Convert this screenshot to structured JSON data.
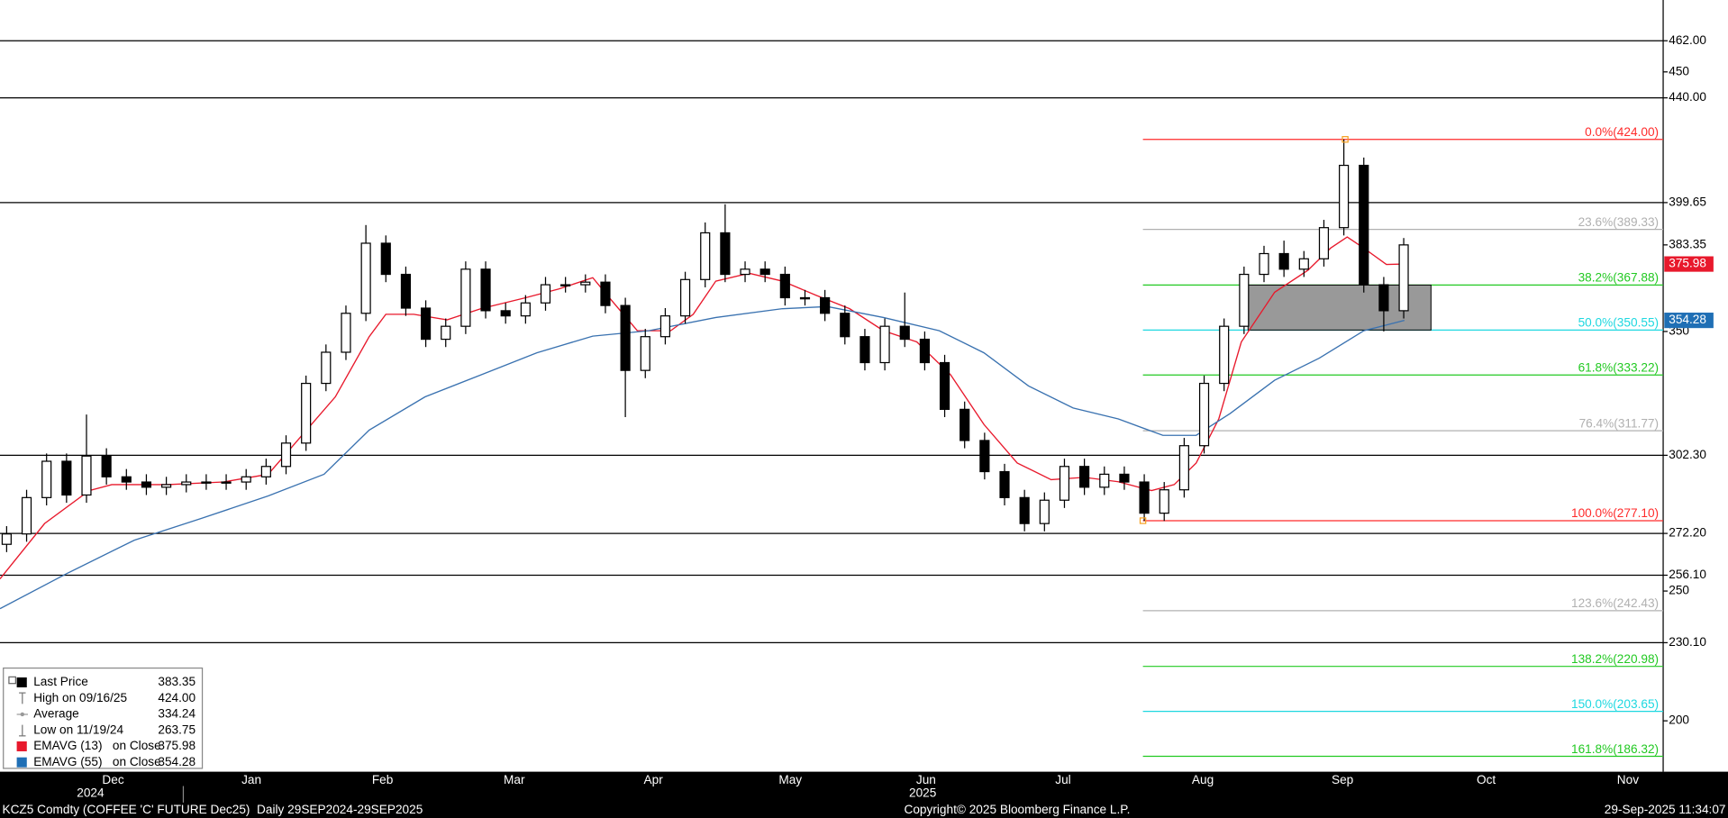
{
  "chart_data": {
    "type": "candlestick",
    "xlim": [
      0,
      250
    ],
    "ylim": [
      180.4,
      477.7
    ],
    "xticks": [
      {
        "value": 17,
        "label": "Dec"
      },
      {
        "value": 37.8,
        "label": "Jan"
      },
      {
        "value": 57.5,
        "label": "Feb"
      },
      {
        "value": 77.3,
        "label": "Mar"
      },
      {
        "value": 98.2,
        "label": "Apr"
      },
      {
        "value": 118.8,
        "label": "May"
      },
      {
        "value": 139.2,
        "label": "Jun"
      },
      {
        "value": 159.8,
        "label": "Jul"
      },
      {
        "value": 180.8,
        "label": "Aug"
      },
      {
        "value": 201.8,
        "label": "Sep"
      },
      {
        "value": 223.4,
        "label": "Oct"
      },
      {
        "value": 244.7,
        "label": "Nov"
      }
    ],
    "year_labels": [
      {
        "value": 13.6,
        "label": "2024"
      },
      {
        "value": 138.7,
        "label": "2025"
      }
    ],
    "yticks": [
      {
        "value": 462,
        "label": "462.00"
      },
      450,
      {
        "value": 440,
        "label": "440.00"
      },
      399.65,
      383.35,
      350,
      {
        "value": 302.3,
        "label": "302.30"
      },
      {
        "value": 272.2,
        "label": "272.20"
      },
      {
        "value": 256.1,
        "label": "256.10"
      },
      250,
      {
        "value": 230.1,
        "label": "230.10"
      },
      200
    ],
    "hlines": [
      462,
      440,
      399.65,
      302.3,
      272.2,
      256.1,
      230.1
    ],
    "x": [
      1,
      4,
      7,
      10,
      13,
      16,
      19,
      22,
      25,
      28,
      31,
      34,
      37,
      40,
      43,
      46,
      49,
      52,
      55,
      58,
      61,
      64,
      67,
      70,
      73,
      76,
      79,
      82,
      85,
      88,
      91,
      94,
      97,
      100,
      103,
      106,
      109,
      112,
      115,
      118,
      121,
      124,
      127,
      130,
      133,
      136,
      139,
      142,
      145,
      148,
      151,
      154,
      157,
      160,
      163,
      166,
      169,
      172,
      175,
      178,
      181,
      184,
      187,
      190,
      193,
      196,
      199,
      202,
      205,
      208,
      211
    ],
    "open": [
      268,
      272,
      286,
      300,
      287,
      302,
      294,
      292,
      290,
      291,
      292,
      292,
      292,
      294,
      298,
      307,
      330,
      342,
      357,
      384,
      372,
      359,
      347,
      352,
      374,
      358,
      356,
      361,
      368,
      368,
      369,
      360,
      335,
      348,
      356,
      370,
      388,
      372,
      374,
      372,
      363,
      363,
      357,
      348,
      338,
      352,
      347,
      338,
      320,
      308,
      296,
      286,
      276,
      285,
      298,
      290,
      295,
      292,
      280,
      289,
      306,
      330,
      352,
      372,
      380,
      374,
      378,
      390,
      414,
      368,
      358
    ],
    "high": [
      275,
      289,
      303,
      303,
      318,
      305,
      297,
      295,
      294,
      295,
      295,
      295,
      297,
      301,
      310,
      333,
      345,
      360,
      391,
      387,
      375,
      362,
      355,
      377,
      377,
      361,
      364,
      371,
      371,
      372,
      372,
      363,
      351,
      359,
      373,
      392,
      399,
      377,
      377,
      375,
      366,
      366,
      360,
      351,
      355,
      365,
      350,
      341,
      323,
      311,
      299,
      289,
      288,
      301,
      301,
      298,
      298,
      295,
      292,
      309,
      333,
      355,
      375,
      383,
      385,
      381,
      393,
      424,
      417,
      371,
      386
    ],
    "low": [
      265,
      269,
      283,
      284,
      284,
      291,
      289,
      287,
      287,
      288,
      289,
      289,
      289,
      291,
      295,
      304,
      327,
      339,
      354,
      369,
      356,
      344,
      344,
      349,
      355,
      353,
      353,
      358,
      365,
      365,
      357,
      317,
      332,
      345,
      353,
      367,
      369,
      369,
      369,
      360,
      360,
      354,
      345,
      335,
      335,
      344,
      335,
      317,
      305,
      293,
      283,
      273,
      273,
      282,
      287,
      287,
      289,
      277,
      277,
      286,
      303,
      327,
      349,
      369,
      371,
      371,
      375,
      387,
      365,
      350,
      355
    ],
    "close": [
      272,
      286,
      300,
      287,
      302,
      294,
      292,
      290,
      291,
      292,
      292,
      292,
      294,
      298,
      307,
      330,
      342,
      357,
      384,
      372,
      359,
      347,
      352,
      374,
      358,
      356,
      361,
      368,
      368,
      369,
      360,
      335,
      348,
      356,
      370,
      388,
      372,
      374,
      372,
      363,
      363,
      357,
      348,
      338,
      352,
      347,
      338,
      320,
      308,
      296,
      286,
      276,
      285,
      298,
      290,
      295,
      292,
      280,
      289,
      306,
      330,
      352,
      372,
      380,
      374,
      378,
      390,
      414,
      368,
      358,
      383.35
    ],
    "up_color": "#ffffff",
    "down_color": "#000000",
    "overlays": [
      {
        "color": "#e8192c",
        "x": [
          0,
          6.7,
          13.4,
          16.8,
          25.2,
          33.6,
          40.3,
          45.4,
          50.4,
          55.5,
          58,
          62.2,
          67.2,
          72.3,
          79,
          84,
          89.1,
          91.6,
          95.8,
          100.8,
          104.2,
          107.6,
          112.6,
          117.6,
          122.7,
          127.7,
          132.8,
          137.8,
          142.9,
          147.9,
          152.9,
          158,
          163,
          168.1,
          173.1,
          176.5,
          179.8,
          183.2,
          186.6,
          191.6,
          196.6,
          200,
          202.5,
          205,
          208.4,
          211.1
        ],
        "values": [
          254.7,
          276,
          288.7,
          291,
          291,
          292,
          295,
          310,
          324.8,
          348,
          356.6,
          356.6,
          354.5,
          358.8,
          363,
          366.4,
          370.7,
          363,
          350.3,
          350.3,
          356.6,
          369.4,
          372.4,
          369.4,
          363.9,
          358.8,
          350.3,
          346,
          333.3,
          314.2,
          299.3,
          292.9,
          293.8,
          292.1,
          288.7,
          291,
          299.3,
          316.3,
          346,
          365.1,
          373.6,
          382.1,
          386.4,
          382.1,
          375.8,
          375.98
        ]
      },
      {
        "color": "#3a72b0",
        "x": [
          0,
          10.1,
          20.2,
          30.3,
          40.3,
          48.7,
          55.5,
          63.9,
          72.3,
          80.7,
          89.1,
          97.5,
          107.6,
          117.6,
          124.4,
          132.8,
          141.2,
          147.9,
          154.6,
          161.3,
          168.1,
          174.8,
          179.8,
          184.9,
          191.6,
          198.3,
          205,
          211.1
        ],
        "values": [
          243.2,
          256.8,
          269.6,
          278,
          286.6,
          295,
          312,
          324.8,
          333.3,
          341.8,
          348.2,
          350.3,
          355.4,
          358.8,
          359.6,
          355.4,
          350.3,
          341.8,
          329,
          320.5,
          316.3,
          310,
          310,
          318.4,
          331.2,
          339.7,
          350.3,
          354.28
        ]
      }
    ],
    "price_tags": [
      {
        "value": 375.98,
        "color": "#e8192c"
      },
      {
        "value": 354.28,
        "color": "#1f6fb5"
      }
    ],
    "fib_xlim": [
      171.8,
      250
    ],
    "fib_levels": [
      {
        "label": "0.0%(424.00)",
        "value": 424,
        "color": "#ff2a2a"
      },
      {
        "label": "23.6%(389.33)",
        "value": 389.33,
        "color": "#b0b0b0"
      },
      {
        "label": "38.2%(367.88)",
        "value": 367.88,
        "color": "#22c922"
      },
      {
        "label": "50.0%(350.55)",
        "value": 350.55,
        "color": "#1ed8e0"
      },
      {
        "label": "61.8%(333.22)",
        "value": 333.22,
        "color": "#22c922"
      },
      {
        "label": "76.4%(311.77)",
        "value": 311.77,
        "color": "#b0b0b0"
      },
      {
        "label": "100.0%(277.10)",
        "value": 277.1,
        "color": "#ff2a2a"
      },
      {
        "label": "123.6%(242.43)",
        "value": 242.43,
        "color": "#b0b0b0"
      },
      {
        "label": "138.2%(220.98)",
        "value": 220.98,
        "color": "#22c922"
      },
      {
        "label": "150.0%(203.65)",
        "value": 203.65,
        "color": "#1ed8e0"
      },
      {
        "label": "161.8%(186.32)",
        "value": 186.32,
        "color": "#22c922"
      }
    ],
    "fib_anchors": [
      {
        "x": 202.2,
        "y": 424
      },
      {
        "x": 171.8,
        "y": 277.1
      }
    ],
    "anchor_color": "#f5a020",
    "shaded_zone": {
      "xlim": [
        187.6,
        215.1
      ],
      "ylim": [
        350.55,
        367.88
      ],
      "color": "#999999"
    },
    "legend": [
      {
        "label": "Last Price",
        "value": 383.35,
        "color": "#000000"
      },
      {
        "label": "High on 09/16/25",
        "value": 424,
        "value_label": "424.00",
        "color": "#777777"
      },
      {
        "label": "Average",
        "value": 334.24,
        "color": "#999999"
      },
      {
        "label": "Low on 11/19/24",
        "value": 263.75,
        "color": "#777777"
      },
      {
        "label": "EMAVG (13)   on Close",
        "value": 375.98,
        "color": "#e8192c"
      },
      {
        "label": "EMAVG (55)   on Close",
        "value": 354.28,
        "color": "#1f6fb5"
      }
    ],
    "footer": {
      "left": "KCZ5 Comdty (COFFEE 'C' FUTURE Dec25)  Daily 29SEP2024-29SEP2025",
      "center": "Copyright© 2025 Bloomberg Finance L.P.",
      "right": "29-Sep-2025 11:34:07"
    }
  }
}
